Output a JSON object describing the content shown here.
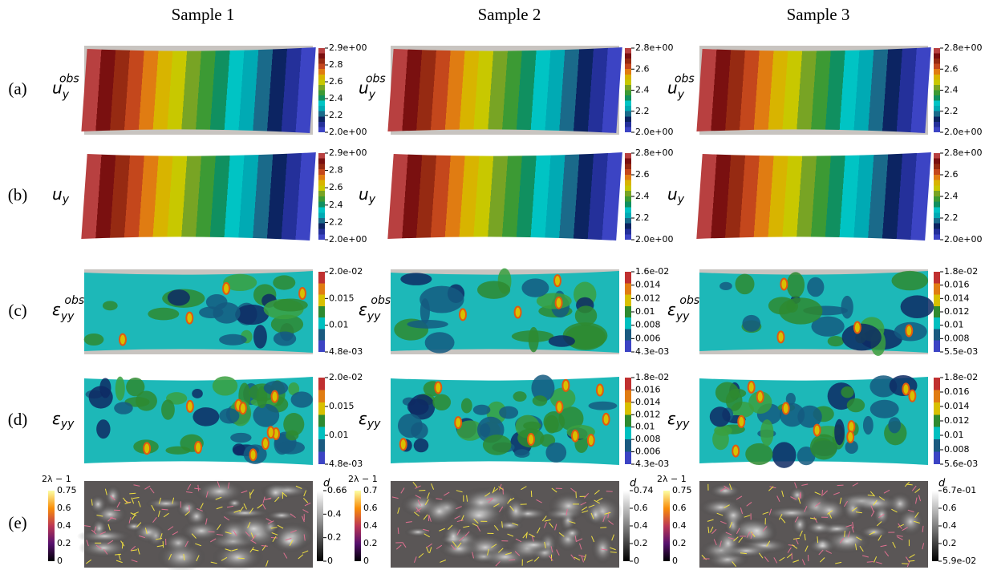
{
  "columns": [
    "Sample 1",
    "Sample 2",
    "Sample 3"
  ],
  "rows": [
    {
      "label": "(a)",
      "field": {
        "base": "u",
        "sub": "y",
        "sup": "obs"
      },
      "colorbars": [
        [
          "2.9e+00",
          "2.8",
          "2.6",
          "2.4",
          "2.2",
          "2.0e+00"
        ],
        [
          "2.8e+00",
          "2.6",
          "2.4",
          "2.2",
          "2.0e+00"
        ],
        [
          "2.8e+00",
          "2.6",
          "2.4",
          "2.2",
          "2.0e+00"
        ]
      ]
    },
    {
      "label": "(b)",
      "field": {
        "base": "u",
        "sub": "y"
      },
      "colorbars": [
        [
          "2.9e+00",
          "2.8",
          "2.6",
          "2.4",
          "2.2",
          "2.0e+00"
        ],
        [
          "2.8e+00",
          "2.6",
          "2.4",
          "2.2",
          "2.0e+00"
        ],
        [
          "2.8e+00",
          "2.6",
          "2.4",
          "2.2",
          "2.0e+00"
        ]
      ]
    },
    {
      "label": "(c)",
      "field": {
        "base": "ε",
        "sub": "yy",
        "sup": "obs"
      },
      "colorbars": [
        [
          "2.0e-02",
          "0.015",
          "0.01",
          "4.8e-03"
        ],
        [
          "1.6e-02",
          "0.014",
          "0.012",
          "0.01",
          "0.008",
          "0.006",
          "4.3e-03"
        ],
        [
          "1.8e-02",
          "0.016",
          "0.014",
          "0.012",
          "0.01",
          "0.008",
          "5.5e-03"
        ]
      ]
    },
    {
      "label": "(d)",
      "field": {
        "base": "ε",
        "sub": "yy"
      },
      "colorbars": [
        [
          "2.0e-02",
          "0.015",
          "0.01",
          "4.8e-03"
        ],
        [
          "1.8e-02",
          "0.016",
          "0.014",
          "0.012",
          "0.01",
          "0.008",
          "0.006",
          "4.3e-03"
        ],
        [
          "1.8e-02",
          "0.016",
          "0.014",
          "0.012",
          "0.01",
          "0.008",
          "5.6e-03"
        ]
      ]
    },
    {
      "label": "(e)",
      "panels": [
        {
          "left": {
            "title": "2λ − 1",
            "ticks": [
              "0.75",
              "0.6",
              "0.4",
              "0.2",
              "0"
            ]
          },
          "right": {
            "title": "d",
            "ticks": [
              "0.66",
              "0.4",
              "0.2",
              "0"
            ]
          }
        },
        {
          "left": {
            "title": "2λ − 1",
            "ticks": [
              "0.7",
              "0.6",
              "0.4",
              "0.2",
              "0"
            ]
          },
          "right": {
            "title": "d",
            "ticks": [
              "0.74",
              "0.6",
              "0.4",
              "0.2",
              "0"
            ]
          }
        },
        {
          "left": {
            "title": "2λ − 1",
            "ticks": [
              "0.75",
              "0.6",
              "0.4",
              "0.2",
              "0"
            ]
          },
          "right": {
            "title": "d",
            "ticks": [
              "6.7e-01",
              "0.6",
              "0.4",
              "0.2",
              "5.9e-02"
            ]
          }
        }
      ]
    }
  ]
}
